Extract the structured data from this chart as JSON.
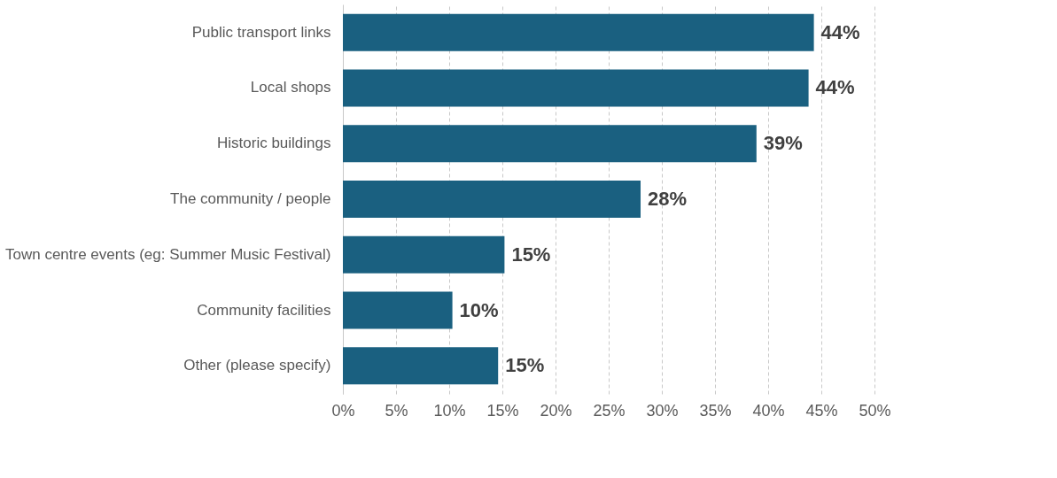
{
  "chart_data": {
    "type": "bar",
    "orientation": "horizontal",
    "categories": [
      "Public transport links",
      "Local shops",
      "Historic buildings",
      "The community / people",
      "Town centre events (eg: Summer Music Festival)",
      "Community facilities",
      "Other (please specify)"
    ],
    "values": [
      44.3,
      43.8,
      38.9,
      28.0,
      15.2,
      10.3,
      14.6
    ],
    "value_labels": [
      "44%",
      "44%",
      "39%",
      "28%",
      "15%",
      "10%",
      "15%"
    ],
    "color": "#1a6080",
    "xlim": [
      0,
      50
    ],
    "xticks": [
      {
        "value": 0,
        "label": "0%"
      },
      {
        "value": 5,
        "label": "5%"
      },
      {
        "value": 10,
        "label": "10%"
      },
      {
        "value": 15,
        "label": "15%"
      },
      {
        "value": 20,
        "label": "20%"
      },
      {
        "value": 25,
        "label": "25%"
      },
      {
        "value": 30,
        "label": "30%"
      },
      {
        "value": 35,
        "label": "35%"
      },
      {
        "value": 40,
        "label": "40%"
      },
      {
        "value": 45,
        "label": "45%"
      },
      {
        "value": 50,
        "label": "50%"
      }
    ],
    "grid": "x"
  }
}
